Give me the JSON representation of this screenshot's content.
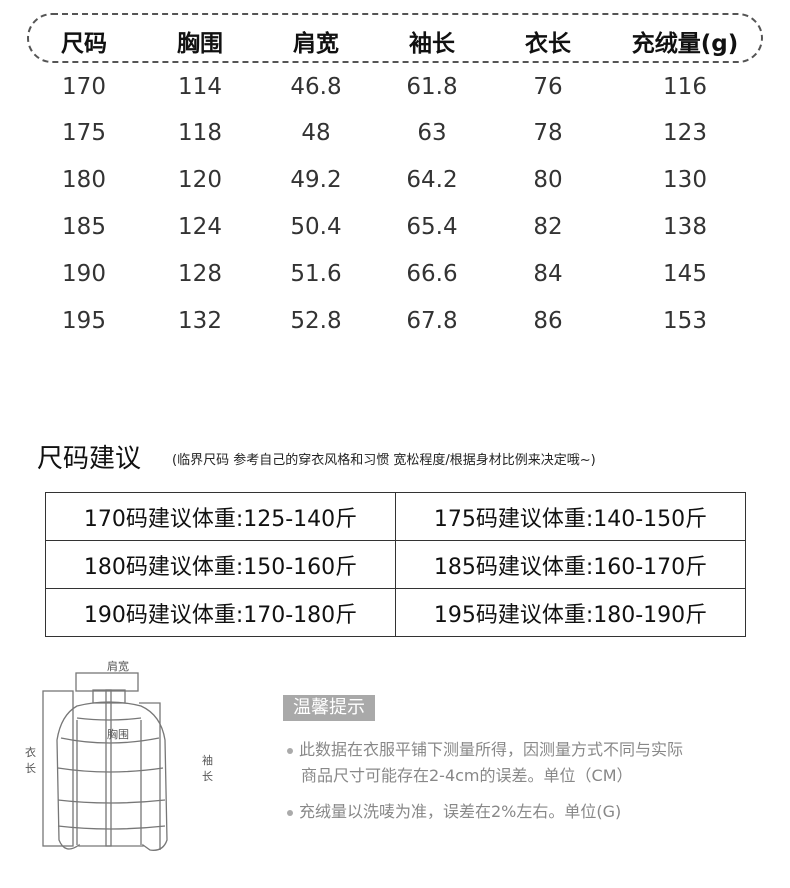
{
  "size_table": {
    "headers": [
      "尺码",
      "胸围",
      "肩宽",
      "袖长",
      "衣长",
      "充绒量(g)"
    ],
    "rows": [
      [
        "170",
        "114",
        "46.8",
        "61.8",
        "76",
        "116"
      ],
      [
        "175",
        "118",
        "48",
        "63",
        "78",
        "123"
      ],
      [
        "180",
        "120",
        "49.2",
        "64.2",
        "80",
        "130"
      ],
      [
        "185",
        "124",
        "50.4",
        "65.4",
        "82",
        "138"
      ],
      [
        "190",
        "128",
        "51.6",
        "66.6",
        "84",
        "145"
      ],
      [
        "195",
        "132",
        "52.8",
        "67.8",
        "86",
        "153"
      ]
    ]
  },
  "suggestion": {
    "title": "尺码建议",
    "note": "(临界尺码 参考自己的穿衣风格和习惯 宽松程度/根据身材比例来决定哦~)",
    "cells": [
      [
        "170码建议体重:125-140斤",
        "175码建议体重:140-150斤"
      ],
      [
        "180码建议体重:150-160斤",
        "185码建议体重:160-170斤"
      ],
      [
        "190码建议体重:170-180斤",
        "195码建议体重:180-190斤"
      ]
    ]
  },
  "diagram": {
    "shoulder": "肩宽",
    "chest": "胸围",
    "length": "衣长",
    "sleeve": "袖长"
  },
  "tips": {
    "label": "温馨提示",
    "line1": "此数据在衣服平铺下测量所得，因测量方式不同与实际",
    "line1b": "商品尺寸可能存在2-4cm的误差。单位（CM）",
    "line2": "充绒量以洗唛为准，误差在2%左右。单位(G)"
  }
}
